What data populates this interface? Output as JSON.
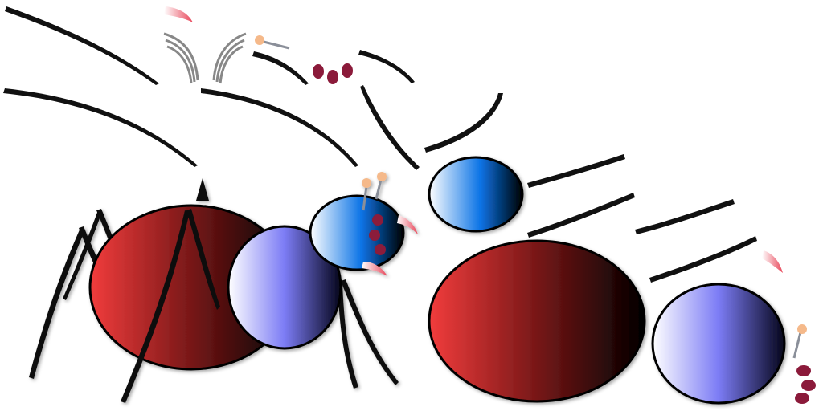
{
  "image": {
    "description_free": true
  },
  "colors": {
    "background": "#ffffff",
    "abdomen_light": "#f23c3c",
    "abdomen_mid": "#6b1414",
    "abdomen_dark": "#000000",
    "thorax_light": "#ffffff",
    "thorax_mid": "#7c7cf5",
    "thorax_dark": "#05051a",
    "head_light": "#ffffff",
    "head_mid": "#0a73e6",
    "head_dark": "#000000",
    "outline": "#000000",
    "leg": "#111111",
    "eye": "#8b1a3a",
    "antenna_tip": "#f5b98a",
    "antenna_stalk": "#8a8f99",
    "mandible": "#e8475a",
    "spinneret": "#6b6b6b"
  },
  "icons": [
    "ant-figure",
    "ant-parts-exploded"
  ]
}
